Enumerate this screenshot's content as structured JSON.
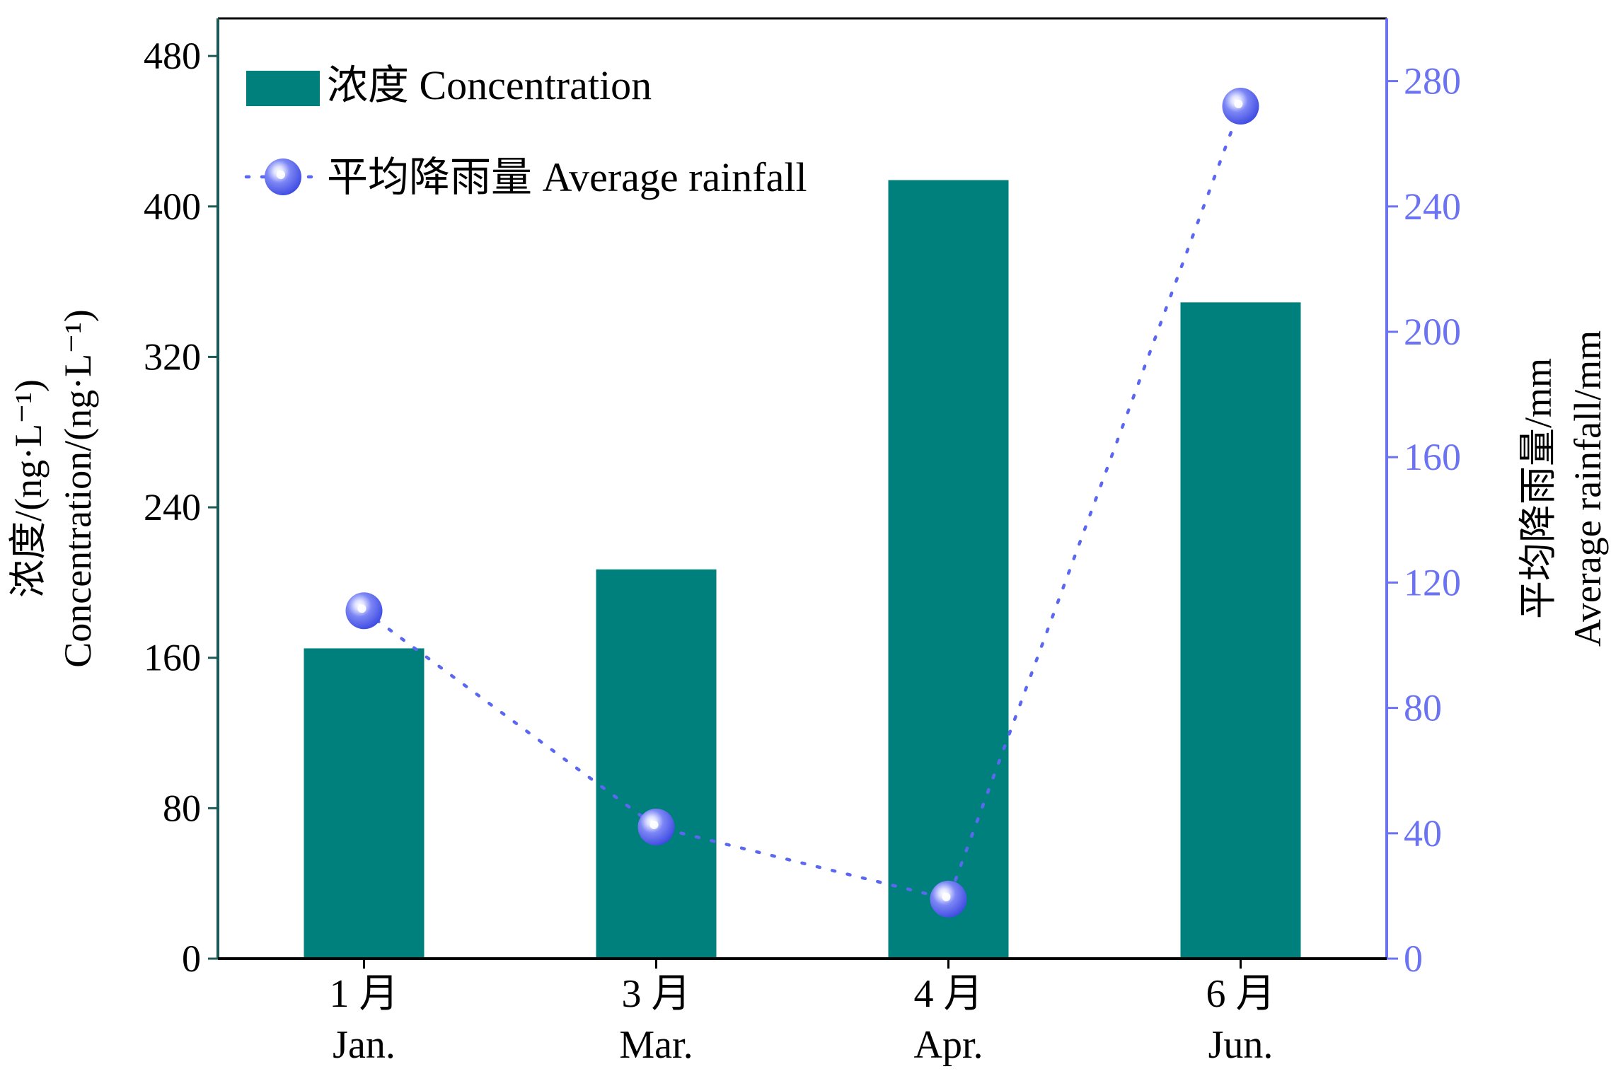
{
  "chart_data": {
    "type": "bar",
    "categories": [
      {
        "cn": "1 月",
        "en": "Jan."
      },
      {
        "cn": "3 月",
        "en": "Mar."
      },
      {
        "cn": "4 月",
        "en": "Apr."
      },
      {
        "cn": "6 月",
        "en": "Jun."
      }
    ],
    "series": [
      {
        "name": "浓度 Concentration",
        "type": "bar",
        "axis": "left",
        "values": [
          165,
          207,
          414,
          349
        ]
      },
      {
        "name": "平均降雨量 Average rainfall",
        "type": "line",
        "axis": "right",
        "values": [
          111,
          42,
          19,
          272
        ]
      }
    ],
    "y_left": {
      "label_line1": "浓度/(ng·L⁻¹)",
      "label_line2": "Concentration/(ng·L⁻¹)",
      "ylim": [
        0,
        500
      ],
      "ticks": [
        "0",
        "80",
        "160",
        "240",
        "320",
        "400",
        "480"
      ],
      "tick_values": [
        0,
        80,
        160,
        240,
        320,
        400,
        480
      ]
    },
    "y_right": {
      "label_line1": "平均降雨量/mm",
      "label_line2": "Average rainfall/mm",
      "ylim": [
        0,
        300
      ],
      "ticks": [
        "0",
        "40",
        "80",
        "120",
        "160",
        "200",
        "240",
        "280"
      ],
      "tick_values": [
        0,
        40,
        80,
        120,
        160,
        200,
        240,
        280
      ]
    },
    "legend_position": "top-left",
    "grid": false,
    "colors": {
      "bar": "#00807c",
      "line": "#5b67f0",
      "marker": "#5060f0",
      "axis_left": "#1b5a56",
      "axis_right": "#6b73f2",
      "text": "#000000"
    }
  }
}
